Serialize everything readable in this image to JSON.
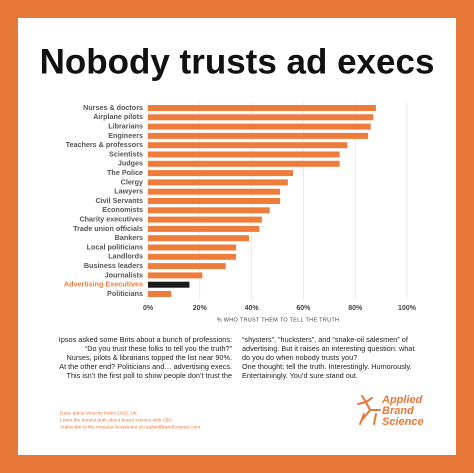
{
  "chart_data": {
    "type": "bar",
    "orientation": "horizontal",
    "title": "Nobody trusts ad execs",
    "x_label": "% WHO TRUST THEM TO TELL THE TRUTH",
    "categories": [
      "Nurses & doctors",
      "Airplane pilots",
      "Librarians",
      "Engineers",
      "Teachers & professors",
      "Scientists",
      "Judges",
      "The Police",
      "Clergy",
      "Lawyers",
      "Civil Servants",
      "Economists",
      "Charity executives",
      "Trade union officials",
      "Bankers",
      "Local politicians",
      "Landlords",
      "Business leaders",
      "Journalists",
      "Advertising Executives",
      "Politicians"
    ],
    "values": [
      88,
      87,
      86,
      85,
      77,
      74,
      74,
      56,
      54,
      51,
      51,
      47,
      44,
      43,
      39,
      34,
      34,
      30,
      21,
      16,
      9
    ],
    "colors": [
      "#ee7d3b",
      "#ee7d3b",
      "#ee7d3b",
      "#ee7d3b",
      "#ee7d3b",
      "#ee7d3b",
      "#ee7d3b",
      "#ee7d3b",
      "#ee7d3b",
      "#ee7d3b",
      "#ee7d3b",
      "#ee7d3b",
      "#ee7d3b",
      "#ee7d3b",
      "#ee7d3b",
      "#ee7d3b",
      "#ee7d3b",
      "#ee7d3b",
      "#ee7d3b",
      "#1a1a1a",
      "#ee7d3b"
    ],
    "xlim": [
      0,
      100
    ],
    "xticks": [
      {
        "value": 0,
        "label": "0%"
      },
      {
        "value": 20,
        "label": "20%"
      },
      {
        "value": 40,
        "label": "40%"
      },
      {
        "value": 60,
        "label": "60%"
      },
      {
        "value": 80,
        "label": "80%"
      },
      {
        "value": 100,
        "label": "100%"
      }
    ],
    "grid": true
  },
  "text": {
    "left": [
      "Ipsos asked some Brits about a bunch of professions:",
      "“Do you trust these folks to tell you the truth?”",
      "Nurses, pilots & librarians topped the list near 90%.",
      "At the other end? Politicians and… advertising execs.",
      "This isn’t the first poll to show people don’t trust the"
    ],
    "right": [
      "“shysters”, “hucksters”, and “snake-oil salesmen” of",
      "advertising. But it raises an interesting question: what",
      "do you do when nobody trusts you?",
      "One thought; tell the truth. Interestingly. Humorously.",
      "Entertainingly. You’d sure stand out."
    ],
    "footnotes": [
      "Data: Ipsos Veracity Index 2023, UK",
      "Learn the honest truth about brand science with ABS",
      "Subscribe to the irregular Newsletter at AppliedBrandScience.com"
    ],
    "logo": [
      "Applied",
      "Brand",
      "Science"
    ]
  }
}
